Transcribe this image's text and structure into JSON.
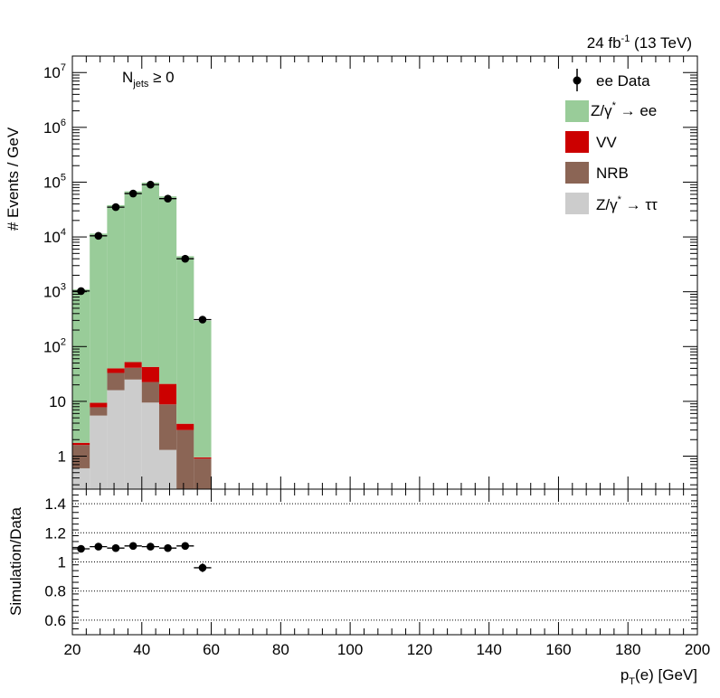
{
  "chart_data": [
    {
      "type": "bar",
      "stacked": true,
      "xlabel_main": "p",
      "xlabel_sub": "T",
      "xlabel_rest": "(e) [GeV]",
      "ylabel": "# Events / GeV",
      "lumi_prefix": "24 fb",
      "lumi_sup": "-1",
      "lumi_suffix": " (13 TeV)",
      "selection_main": "N",
      "selection_sub": "jets",
      "selection_rest": " ≥ 0",
      "xlim": [
        20,
        200
      ],
      "ylim": [
        0.25,
        20000000
      ],
      "yscale": "log",
      "x_ticks": [
        "20",
        "40",
        "60",
        "80",
        "100",
        "120",
        "140",
        "160",
        "180",
        "200"
      ],
      "y_ticks": [
        {
          "value": 1,
          "base": "1",
          "exp": ""
        },
        {
          "value": 10,
          "base": "10",
          "exp": ""
        },
        {
          "value": 100,
          "base": "10",
          "exp": "2"
        },
        {
          "value": 1000,
          "base": "10",
          "exp": "3"
        },
        {
          "value": 10000,
          "base": "10",
          "exp": "4"
        },
        {
          "value": 100000,
          "base": "10",
          "exp": "5"
        },
        {
          "value": 1000000,
          "base": "10",
          "exp": "6"
        },
        {
          "value": 10000000,
          "base": "10",
          "exp": "7"
        }
      ],
      "bin_edges": [
        20,
        25,
        30,
        35,
        40,
        45,
        50,
        55,
        60
      ],
      "stack": [
        {
          "key": "ztautau",
          "color": "#cccccc",
          "values": [
            0.6,
            5.5,
            16,
            25,
            9.5,
            1.3,
            0,
            0
          ]
        },
        {
          "key": "nrb",
          "color": "#8b6555",
          "values": [
            1.0,
            2.3,
            17,
            16,
            13,
            7.5,
            3.0,
            0.9
          ]
        },
        {
          "key": "vv",
          "color": "#cc0000",
          "values": [
            0.15,
            1.6,
            7,
            11,
            20,
            12,
            0.9,
            0.05
          ]
        },
        {
          "key": "zee",
          "color": "#99cc99",
          "values": [
            1100,
            11500,
            38000,
            68000,
            98000,
            55000,
            4450,
            296
          ]
        }
      ],
      "data_points": {
        "x": [
          22.5,
          27.5,
          32.5,
          37.5,
          42.5,
          47.5,
          52.5,
          57.5
        ],
        "y": [
          1030,
          10500,
          35000,
          62000,
          90000,
          50000,
          4000,
          310
        ]
      },
      "legend": {
        "placement": "top-right",
        "entries": [
          {
            "key": "data",
            "marker": "point",
            "label": "ee Data"
          },
          {
            "key": "zee",
            "color": "#99cc99",
            "pre": "Z/γ",
            "sup": "*",
            "post": " → ee"
          },
          {
            "key": "vv",
            "color": "#cc0000",
            "pre": "VV",
            "sup": "",
            "post": ""
          },
          {
            "key": "nrb",
            "color": "#8b6555",
            "pre": "NRB",
            "sup": "",
            "post": ""
          },
          {
            "key": "ztautau",
            "color": "#cccccc",
            "pre": "Z/γ",
            "sup": "*",
            "post": " → ττ"
          }
        ]
      }
    },
    {
      "type": "scatter",
      "ylabel": "Simulation/Data",
      "xlim": [
        20,
        200
      ],
      "ylim": [
        0.5,
        1.5
      ],
      "y_ticks": [
        "0.6",
        "0.8",
        "1",
        "1.2",
        "1.4"
      ],
      "gridlines_y": [
        0.6,
        0.8,
        1.0,
        1.2,
        1.4
      ],
      "x": [
        22.5,
        27.5,
        32.5,
        37.5,
        42.5,
        47.5,
        52.5,
        57.5
      ],
      "y": [
        1.09,
        1.105,
        1.095,
        1.11,
        1.105,
        1.095,
        1.11,
        0.96
      ],
      "yerr": [
        0.004,
        0.003,
        0.003,
        0.003,
        0.003,
        0.003,
        0.005,
        0.03
      ]
    }
  ]
}
